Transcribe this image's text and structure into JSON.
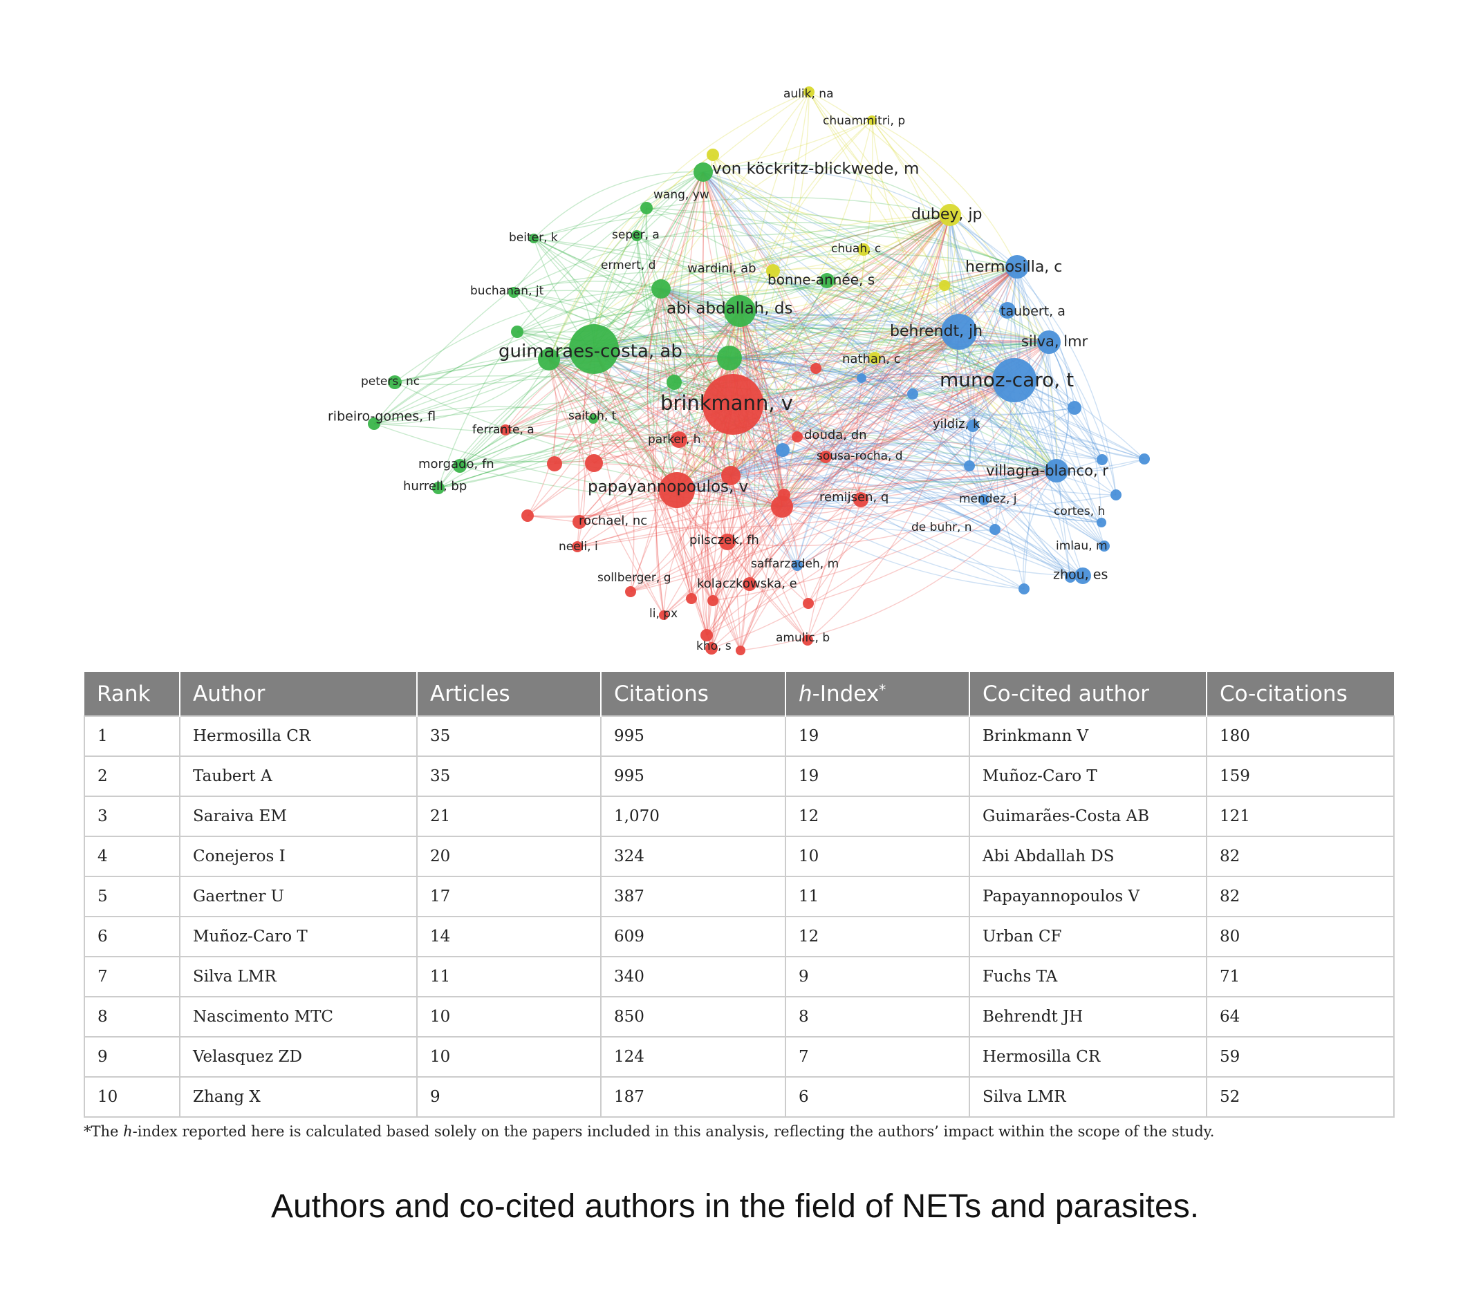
{
  "network": {
    "colors": {
      "red": "#e8463f",
      "green": "#3ab54a",
      "blue": "#4a90d9",
      "yellow": "#d9d92e"
    },
    "labels": [
      "aulik, na",
      "chuammitri, p",
      "von köckritz-blickwede, m",
      "wang, yw",
      "dubey, jp",
      "beiter, k",
      "seper, a",
      "chuah, c",
      "ermert, d",
      "wardini, ab",
      "hermosilla, c",
      "bonne-année, s",
      "buchanan, jt",
      "taubert, a",
      "abi abdallah, ds",
      "behrendt, jh",
      "silva, lmr",
      "guimaraes-costa, ab",
      "nathan, c",
      "munoz-caro, t",
      "peters, nc",
      "brinkmann, v",
      "ribeiro-gomes, fl",
      "saitoh, t",
      "yildiz, k",
      "ferrante, a",
      "douda, dn",
      "parker, h",
      "sousa-rocha, d",
      "morgado, fn",
      "villagra-blanco, r",
      "hurrell, bp",
      "papayannopoulos, v",
      "remijsen, q",
      "mendez, j",
      "cortes, h",
      "rochael, nc",
      "de buhr, n",
      "neeli, i",
      "pilsczek, fh",
      "imlau, m",
      "saffarzadeh, m",
      "sollberger, g",
      "kolaczkowska, e",
      "zhou, es",
      "li, px",
      "amulic, b",
      "kho, s"
    ]
  },
  "table": {
    "headers": {
      "rank": "Rank",
      "author": "Author",
      "articles": "Articles",
      "citations": "Citations",
      "h_italic": "h",
      "h_rest": "-Index",
      "h_star": "*",
      "cocited": "Co-cited author",
      "cocitations": "Co-citations"
    },
    "rows": [
      {
        "rank": "1",
        "author": "Hermosilla CR",
        "articles": "35",
        "citations": "995",
        "h": "19",
        "cocited": "Brinkmann V",
        "cocitations": "180"
      },
      {
        "rank": "2",
        "author": "Taubert A",
        "articles": "35",
        "citations": "995",
        "h": "19",
        "cocited": "Muñoz-Caro T",
        "cocitations": "159"
      },
      {
        "rank": "3",
        "author": "Saraiva EM",
        "articles": "21",
        "citations": "1,070",
        "h": "12",
        "cocited": "Guimarães-Costa AB",
        "cocitations": "121"
      },
      {
        "rank": "4",
        "author": "Conejeros I",
        "articles": "20",
        "citations": "324",
        "h": "10",
        "cocited": "Abi Abdallah DS",
        "cocitations": "82"
      },
      {
        "rank": "5",
        "author": "Gaertner U",
        "articles": "17",
        "citations": "387",
        "h": "11",
        "cocited": "Papayannopoulos V",
        "cocitations": "82"
      },
      {
        "rank": "6",
        "author": "Muñoz-Caro T",
        "articles": "14",
        "citations": "609",
        "h": "12",
        "cocited": "Urban CF",
        "cocitations": "80"
      },
      {
        "rank": "7",
        "author": "Silva LMR",
        "articles": "11",
        "citations": "340",
        "h": "9",
        "cocited": "Fuchs TA",
        "cocitations": "71"
      },
      {
        "rank": "8",
        "author": "Nascimento MTC",
        "articles": "10",
        "citations": "850",
        "h": "8",
        "cocited": "Behrendt JH",
        "cocitations": "64"
      },
      {
        "rank": "9",
        "author": "Velasquez ZD",
        "articles": "10",
        "citations": "124",
        "h": "7",
        "cocited": "Hermosilla CR",
        "cocitations": "59"
      },
      {
        "rank": "10",
        "author": "Zhang X",
        "articles": "9",
        "citations": "187",
        "h": "6",
        "cocited": "Silva LMR",
        "cocitations": "52"
      }
    ]
  },
  "footnote": {
    "star": "*The ",
    "h": "h",
    "rest": "-index reported here is calculated based solely on the papers included in this analysis, reflecting the authors’ impact within the scope of the study."
  },
  "caption": "Authors and co-cited authors in the field of NETs and parasites."
}
